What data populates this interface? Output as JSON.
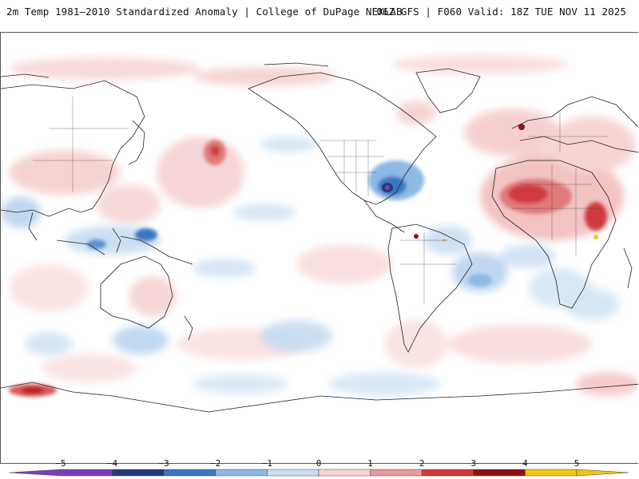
{
  "header": {
    "title_left": "2m Temp 1981–2010 Standardized Anomaly | College of DuPage NEXLAB",
    "title_right": "06Z GFS | F060 Valid: 18Z TUE NOV 11 2025"
  },
  "map": {
    "variable": "2m temperature standardized anomaly",
    "projection": "global cylindrical, Pacific-centered"
  },
  "legend": {
    "tick_labels": [
      "−5",
      "−4",
      "−3",
      "−2",
      "−1",
      "0",
      "1",
      "2",
      "3",
      "4",
      "5"
    ],
    "tick_values": [
      -5,
      -4,
      -3,
      -2,
      -1,
      0,
      1,
      2,
      3,
      4,
      5
    ],
    "colors": [
      "#7b3fb8",
      "#233a7a",
      "#3a76c4",
      "#8db9e3",
      "#c9def2",
      "#f4f6f9",
      "#f6d3d3",
      "#e8999a",
      "#cf3a3c",
      "#8e0f14",
      "#f1c40f"
    ]
  }
}
